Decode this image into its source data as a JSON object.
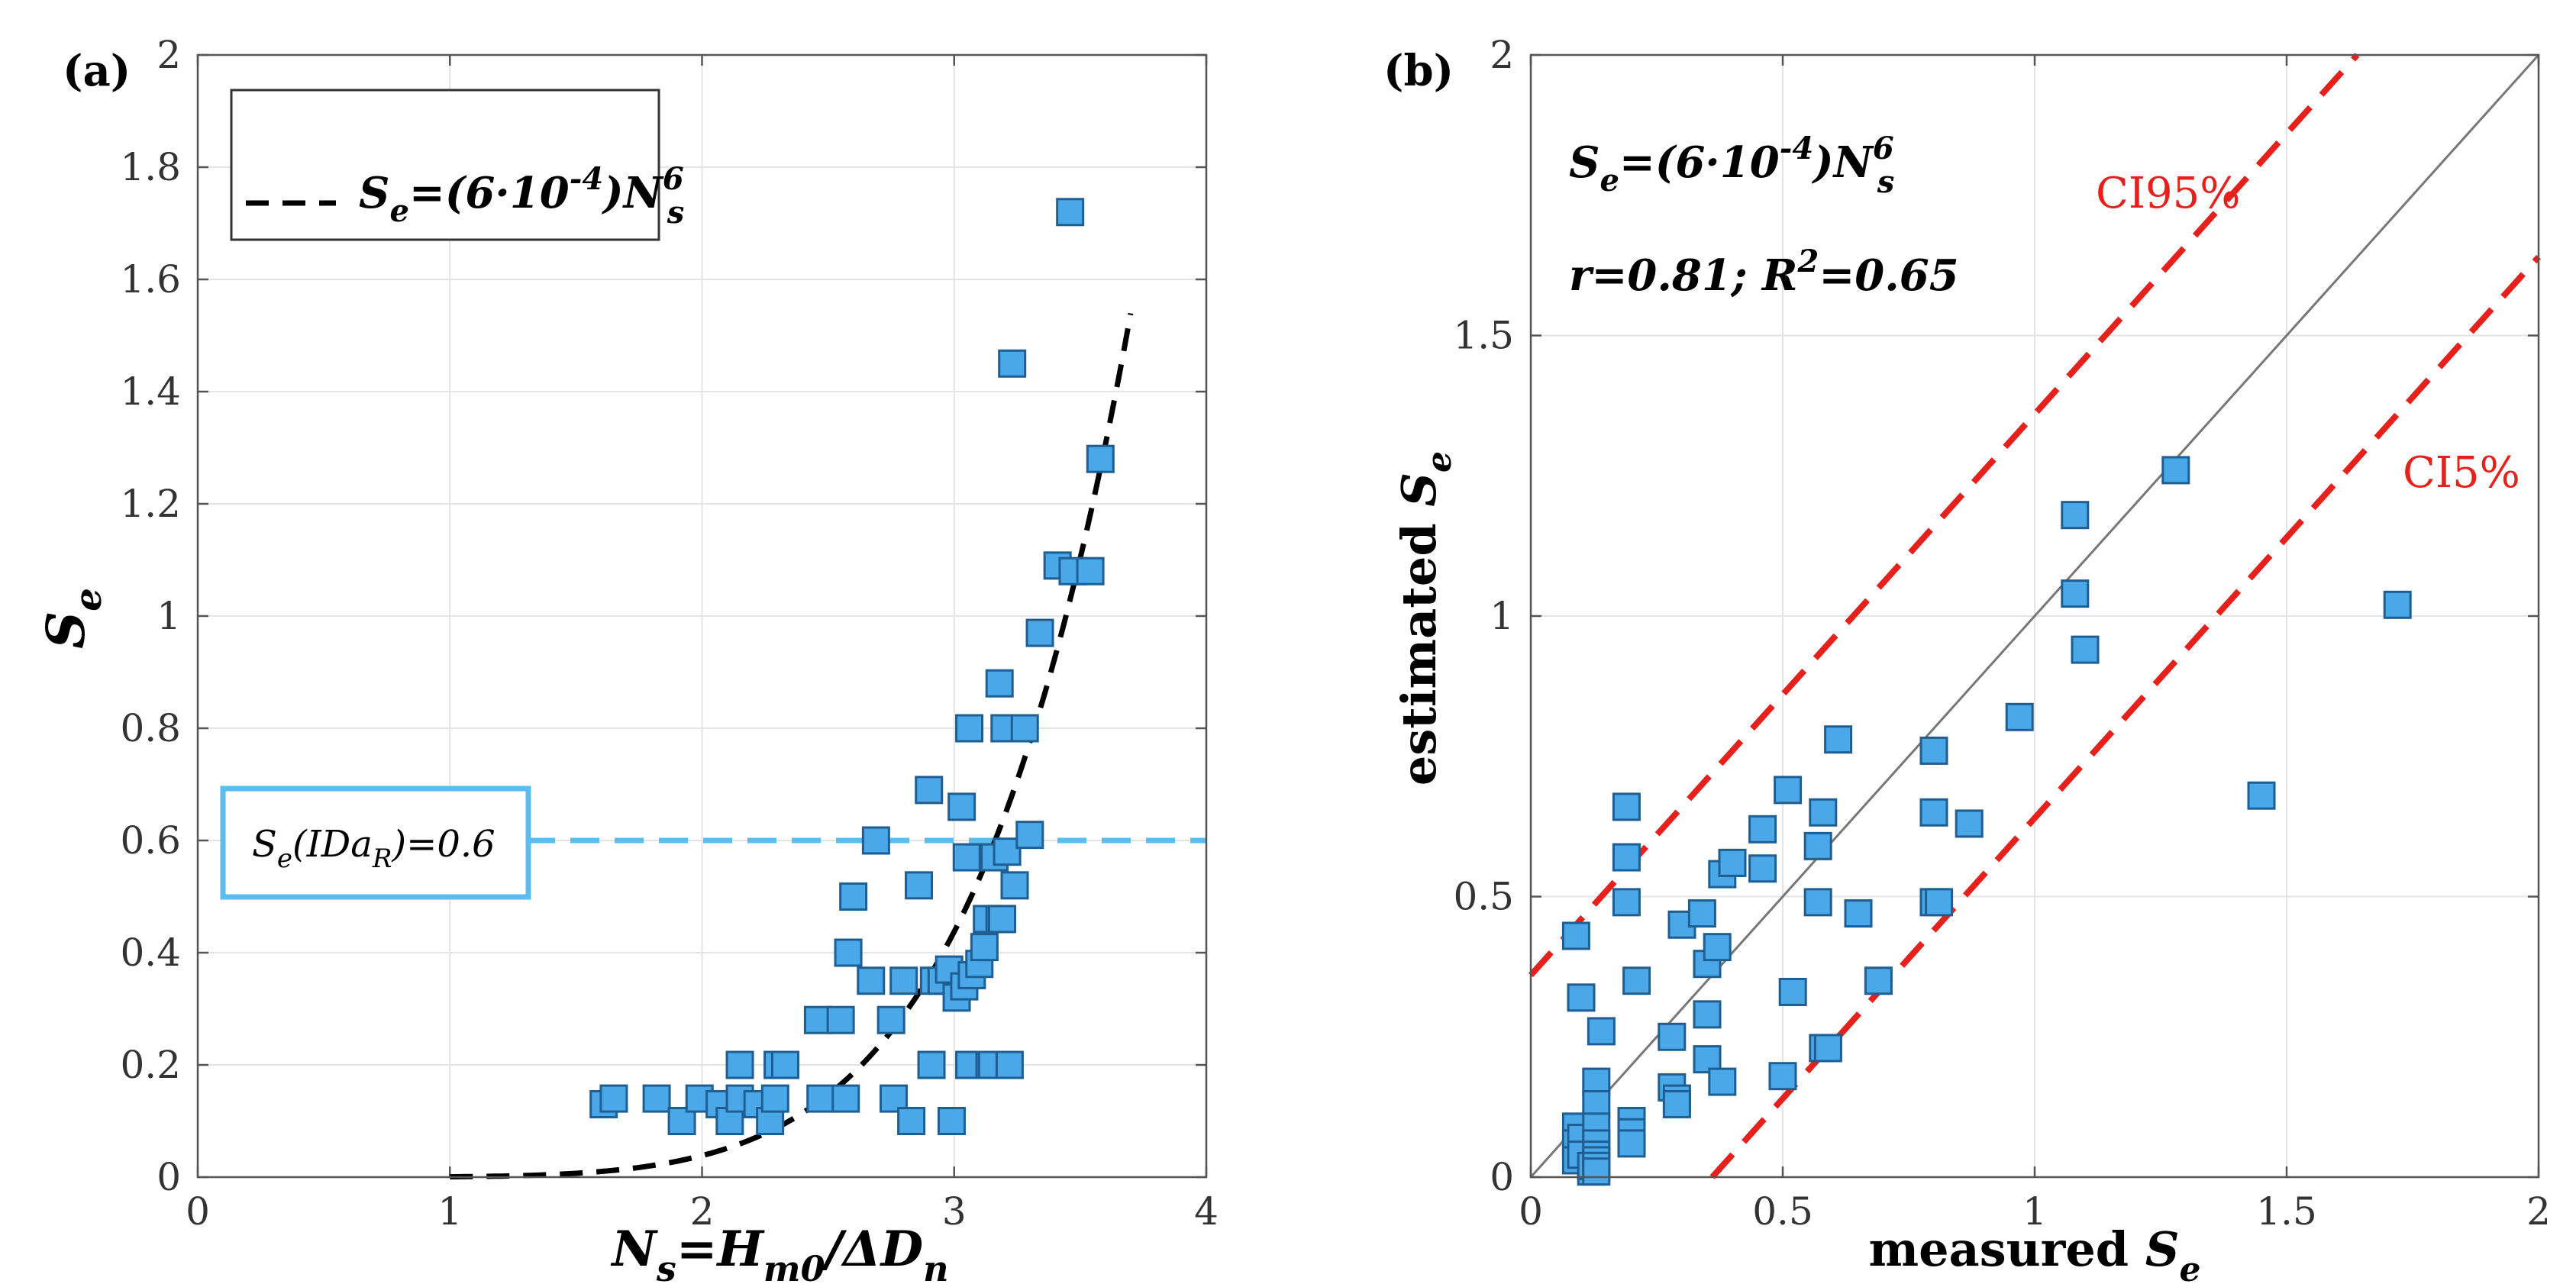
{
  "chart_data": [
    {
      "panel": "(a)",
      "type": "scatter",
      "xlabel": "N_s=H_m0/ΔD_n",
      "ylabel": "S_e",
      "xlim": [
        0,
        4
      ],
      "ylim": [
        0,
        2
      ],
      "xticks": [
        "0",
        "1",
        "2",
        "3",
        "4"
      ],
      "yticks": [
        "0",
        "0.2",
        "0.4",
        "0.6",
        "0.8",
        "1",
        "1.2",
        "1.4",
        "1.6",
        "1.8",
        "2"
      ],
      "grid": true,
      "legend": {
        "position": "top-left",
        "entry": "S_e=(6·10^-4)N_s^6"
      },
      "curve": {
        "style": "dashed",
        "color": "#000000",
        "formula": "0.0006*x^6",
        "x_range": [
          1.0,
          3.7
        ]
      },
      "threshold": {
        "value": 0.6,
        "label": "S_e(IDa_R)=0.6",
        "color": "#5bbcf0"
      },
      "x": [
        1.61,
        1.65,
        1.82,
        1.92,
        1.99,
        2.07,
        2.11,
        2.15,
        2.15,
        2.22,
        2.27,
        2.29,
        2.3,
        2.33,
        2.46,
        2.47,
        2.55,
        2.57,
        2.58,
        2.6,
        2.67,
        2.69,
        2.75,
        2.76,
        2.8,
        2.83,
        2.86,
        2.9,
        2.91,
        2.92,
        2.95,
        2.98,
        2.99,
        3.01,
        3.03,
        3.04,
        3.05,
        3.06,
        3.06,
        3.07,
        3.1,
        3.12,
        3.13,
        3.14,
        3.15,
        3.16,
        3.18,
        3.18,
        3.19,
        3.2,
        3.21,
        3.22,
        3.23,
        3.24,
        3.28,
        3.3,
        3.34,
        3.41,
        3.46,
        3.47,
        3.54,
        3.58
      ],
      "y": [
        0.13,
        0.14,
        0.14,
        0.1,
        0.14,
        0.13,
        0.1,
        0.14,
        0.2,
        0.13,
        0.1,
        0.14,
        0.2,
        0.2,
        0.28,
        0.14,
        0.28,
        0.14,
        0.4,
        0.5,
        0.35,
        0.6,
        0.28,
        0.14,
        0.35,
        0.1,
        0.52,
        0.69,
        0.2,
        0.35,
        0.35,
        0.37,
        0.1,
        0.32,
        0.66,
        0.34,
        0.57,
        0.2,
        0.8,
        0.36,
        0.38,
        0.41,
        0.46,
        0.2,
        0.2,
        0.57,
        0.88,
        0.46,
        0.46,
        0.8,
        0.58,
        0.2,
        1.45,
        0.52,
        0.8,
        0.61,
        0.97,
        1.09,
        1.72,
        1.08,
        1.08,
        1.28
      ]
    },
    {
      "panel": "(b)",
      "type": "scatter",
      "xlabel": "measured S_e",
      "ylabel": "estimated S_e",
      "xlim": [
        0,
        2
      ],
      "ylim": [
        0,
        2
      ],
      "xticks": [
        "0",
        "0.5",
        "1",
        "1.5",
        "2"
      ],
      "yticks": [
        "0",
        "0.5",
        "1",
        "1.5",
        "2"
      ],
      "grid": true,
      "equation": "S_e=(6·10^-4)N_s^6",
      "stats": "r=0.81; R^2=0.65",
      "identity_line": true,
      "ci_upper": {
        "label": "CI95%",
        "intercept": 0.36,
        "color": "#e8201c"
      },
      "ci_lower": {
        "label": "CI5%",
        "intercept": -0.36,
        "color": "#e8201c"
      },
      "x": [
        0.09,
        0.09,
        0.09,
        0.09,
        0.1,
        0.1,
        0.1,
        0.12,
        0.12,
        0.13,
        0.13,
        0.13,
        0.13,
        0.13,
        0.13,
        0.13,
        0.13,
        0.14,
        0.19,
        0.19,
        0.19,
        0.2,
        0.2,
        0.2,
        0.21,
        0.28,
        0.28,
        0.29,
        0.29,
        0.3,
        0.34,
        0.35,
        0.35,
        0.35,
        0.37,
        0.38,
        0.38,
        0.4,
        0.4,
        0.46,
        0.46,
        0.5,
        0.51,
        0.52,
        0.57,
        0.57,
        0.58,
        0.58,
        0.59,
        0.61,
        0.65,
        0.69,
        0.8,
        0.8,
        0.8,
        0.81,
        0.87,
        0.97,
        1.08,
        1.08,
        1.1,
        1.28,
        1.45,
        1.72
      ],
      "y": [
        0.09,
        0.06,
        0.03,
        0.43,
        0.32,
        0.07,
        0.04,
        0.01,
        0.02,
        0.17,
        0.13,
        0.09,
        0.06,
        0.04,
        0.03,
        0.02,
        0.01,
        0.26,
        0.66,
        0.57,
        0.49,
        0.1,
        0.08,
        0.06,
        0.35,
        0.25,
        0.16,
        0.14,
        0.13,
        0.45,
        0.47,
        0.38,
        0.29,
        0.21,
        0.41,
        0.54,
        0.17,
        0.56,
        0.56,
        0.62,
        0.55,
        0.18,
        0.69,
        0.33,
        0.59,
        0.49,
        0.65,
        0.23,
        0.23,
        0.78,
        0.47,
        0.35,
        0.76,
        0.65,
        0.49,
        0.49,
        0.63,
        0.82,
        1.18,
        1.04,
        0.94,
        1.26,
        0.68,
        1.02
      ]
    }
  ]
}
